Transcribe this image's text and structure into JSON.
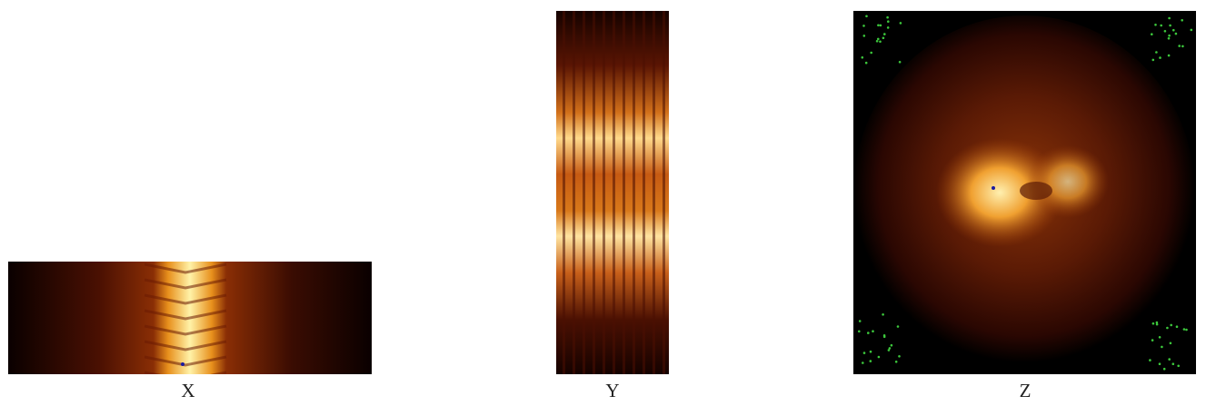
{
  "panels": [
    {
      "label": "X"
    },
    {
      "label": "Y"
    },
    {
      "label": "Z"
    }
  ]
}
